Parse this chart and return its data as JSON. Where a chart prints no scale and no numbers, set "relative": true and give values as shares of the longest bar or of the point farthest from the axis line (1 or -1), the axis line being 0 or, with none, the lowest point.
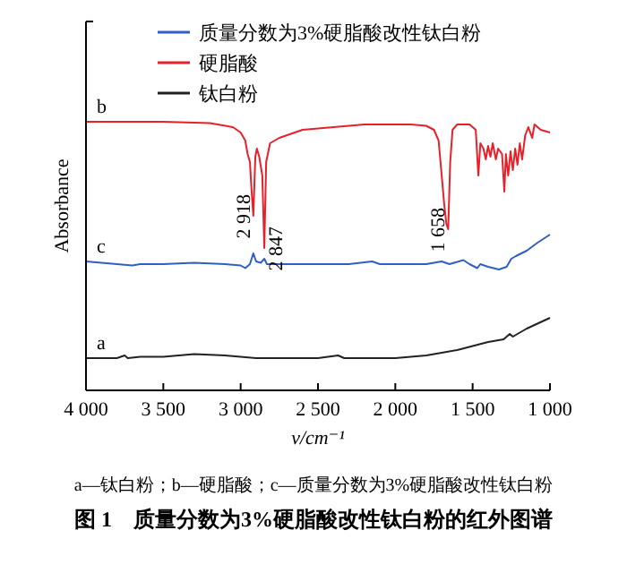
{
  "chart_data": {
    "type": "line",
    "relative": true,
    "title": "图 1　质量分数为3%硬脂酸改性钛白粉的红外图谱",
    "xlabel": "ν/cm⁻¹",
    "ylabel": "Absorbance",
    "xlim": [
      4000,
      1000
    ],
    "xticks": [
      {
        "value": 4000,
        "label": "4 000"
      },
      {
        "value": 3500,
        "label": "3 500"
      },
      {
        "value": 3000,
        "label": "3 000"
      },
      {
        "value": 2500,
        "label": "2 500"
      },
      {
        "value": 2000,
        "label": "2 000"
      },
      {
        "value": 1500,
        "label": "1 500"
      },
      {
        "value": 1000,
        "label": "1 000"
      }
    ],
    "legend": "top right",
    "grid": false,
    "tick_labels": "x",
    "series": [
      {
        "name": "质量分数为3%硬脂酸改性钛白粉",
        "color": "#2f5fc4",
        "x": [
          4000,
          3800,
          3700,
          3650,
          3500,
          3300,
          3100,
          3000,
          2970,
          2940,
          2918,
          2900,
          2870,
          2847,
          2830,
          2600,
          2300,
          2150,
          2100,
          1800,
          1700,
          1650,
          1560,
          1520,
          1470,
          1450,
          1400,
          1330,
          1280,
          1250,
          1220,
          1150,
          1080,
          1000
        ],
        "values": [
          0.48,
          0.47,
          0.465,
          0.47,
          0.47,
          0.475,
          0.47,
          0.465,
          0.455,
          0.47,
          0.51,
          0.48,
          0.475,
          0.49,
          0.47,
          0.47,
          0.47,
          0.48,
          0.47,
          0.47,
          0.48,
          0.47,
          0.485,
          0.47,
          0.455,
          0.47,
          0.46,
          0.45,
          0.46,
          0.49,
          0.5,
          0.52,
          0.55,
          0.58
        ]
      },
      {
        "name": "硬脂酸",
        "color": "#e8202a",
        "x": [
          4000,
          3500,
          3200,
          3050,
          3000,
          2970,
          2955,
          2940,
          2930,
          2918,
          2905,
          2895,
          2880,
          2860,
          2847,
          2835,
          2810,
          2750,
          2600,
          2400,
          2200,
          2000,
          1900,
          1800,
          1750,
          1720,
          1700,
          1685,
          1670,
          1658,
          1645,
          1630,
          1600,
          1520,
          1480,
          1463,
          1450,
          1430,
          1415,
          1400,
          1385,
          1370,
          1350,
          1335,
          1310,
          1295,
          1285,
          1270,
          1255,
          1240,
          1225,
          1210,
          1195,
          1180,
          1160,
          1140,
          1115,
          1100,
          1060,
          1000
        ],
        "values": [
          1,
          1,
          0.995,
          0.98,
          0.96,
          0.93,
          0.88,
          0.85,
          0.75,
          0.65,
          0.87,
          0.9,
          0.87,
          0.8,
          0.53,
          0.85,
          0.92,
          0.94,
          0.97,
          0.98,
          0.99,
          0.99,
          0.99,
          0.985,
          0.97,
          0.93,
          0.8,
          0.7,
          0.62,
          0.6,
          0.85,
          0.97,
          0.99,
          0.99,
          0.97,
          0.8,
          0.92,
          0.9,
          0.86,
          0.91,
          0.87,
          0.92,
          0.86,
          0.9,
          0.88,
          0.74,
          0.88,
          0.8,
          0.89,
          0.82,
          0.9,
          0.84,
          0.92,
          0.86,
          0.95,
          0.98,
          0.94,
          0.99,
          0.97,
          0.96
        ]
      },
      {
        "name": "钛白粉",
        "color": "#222222",
        "x": [
          4000,
          3800,
          3750,
          3730,
          3650,
          3500,
          3300,
          3100,
          2900,
          2500,
          2370,
          2330,
          2000,
          1800,
          1700,
          1600,
          1500,
          1400,
          1300,
          1260,
          1240,
          1150,
          1000
        ],
        "values": [
          0.12,
          0.12,
          0.13,
          0.12,
          0.125,
          0.125,
          0.135,
          0.13,
          0.12,
          0.12,
          0.13,
          0.12,
          0.12,
          0.13,
          0.14,
          0.15,
          0.165,
          0.18,
          0.19,
          0.21,
          0.2,
          0.23,
          0.27
        ]
      }
    ],
    "annotations": [
      {
        "text": "b",
        "x": 4000,
        "y": 1
      },
      {
        "text": "c",
        "x": 4000,
        "y": 0.48
      },
      {
        "text": "a",
        "x": 4000,
        "y": 0.12
      },
      {
        "text": "2 918",
        "x": 2918,
        "y": 0.65
      },
      {
        "text": "2 847",
        "x": 2847,
        "y": 0.53
      },
      {
        "text": "1 658",
        "x": 1658,
        "y": 0.6
      },
      "a—钛白粉；b—硬脂酸；c—质量分数为3%硬脂酸改性钛白粉"
    ]
  }
}
